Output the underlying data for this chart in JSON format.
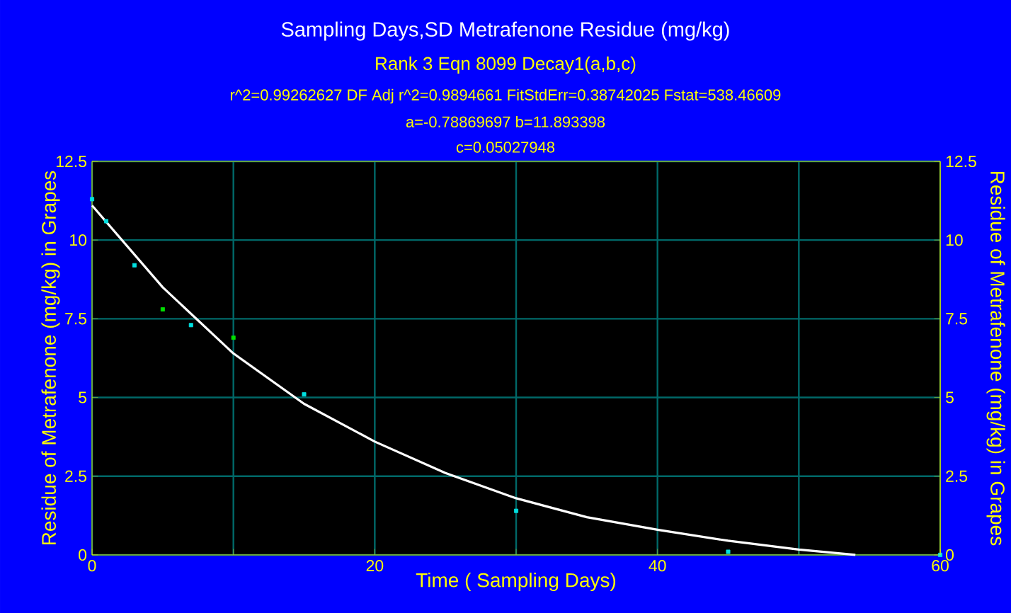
{
  "chart_data": {
    "type": "scatter",
    "title": "Sampling Days,SD Metrafenone Residue (mg/kg)",
    "subtitle": "Rank 3  Eqn 8099  Decay1(a,b,c)",
    "annotations": [
      "r^2=0.99262627  DF Adj r^2=0.9894661  FitStdErr=0.38742025  Fstat=538.46609",
      "a=-0.78869697 b=11.893398",
      "c=0.05027948"
    ],
    "xlabel": "Time ( Sampling Days)",
    "ylabel": "Residue of Metrafenone (mg/kg) in Grapes",
    "y2label": "Residue of Metrafenone (mg/kg) in Grapes",
    "xlim": [
      0,
      60
    ],
    "xticks": [
      0,
      {
        "value": 10,
        "label": null
      },
      20,
      {
        "value": 30,
        "label": null
      },
      40,
      {
        "value": 50,
        "label": null
      },
      60
    ],
    "ylim": [
      0,
      12.5
    ],
    "yticks": [
      0,
      2.5,
      5,
      7.5,
      10,
      12.5
    ],
    "y2lim": [
      0,
      12.5
    ],
    "y2ticks": [
      0,
      2.5,
      5,
      7.5,
      10,
      12.5
    ],
    "grid": true,
    "series": [
      {
        "marker": "square",
        "x": [
          0,
          1,
          3,
          5,
          7,
          10,
          15,
          30,
          45,
          60
        ],
        "values": [
          11.3,
          10.6,
          9.2,
          7.8,
          7.3,
          6.9,
          5.1,
          1.4,
          0.1,
          0
        ],
        "colors": [
          "#00e0e0",
          "#00e0e0",
          "#00e0e0",
          "#00e000",
          "#00e0e0",
          "#00e000",
          "#00e0e0",
          "#00e0e0",
          "#00e0e0",
          "#00e0e0"
        ]
      },
      {
        "type": "line",
        "color": "#ffffff",
        "line_style": "solid",
        "x": [
          0,
          5,
          10,
          15,
          20,
          25,
          30,
          35,
          40,
          45,
          50,
          54
        ],
        "values": [
          11.1,
          8.5,
          6.4,
          4.8,
          3.6,
          2.6,
          1.8,
          1.2,
          0.8,
          0.45,
          0.17,
          0
        ]
      }
    ]
  }
}
